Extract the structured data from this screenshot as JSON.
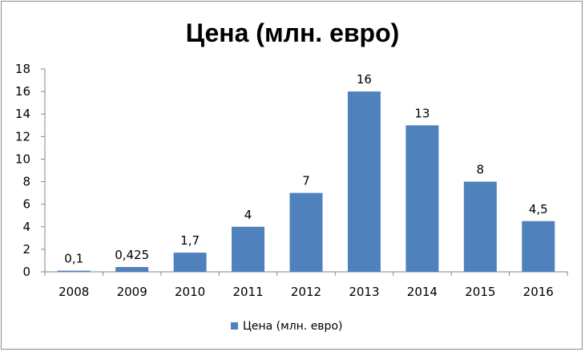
{
  "chart_data": {
    "type": "bar",
    "title": "Цена (млн. евро)",
    "xlabel": "",
    "ylabel": "",
    "categories": [
      "2008",
      "2009",
      "2010",
      "2011",
      "2012",
      "2013",
      "2014",
      "2015",
      "2016"
    ],
    "series": [
      {
        "name": "Цена (млн. евро)",
        "values": [
          0.1,
          0.425,
          1.7,
          4,
          7,
          16,
          13,
          8,
          4.5
        ],
        "labels": [
          "0,1",
          "0,425",
          "1,7",
          "4",
          "7",
          "16",
          "13",
          "8",
          "4,5"
        ],
        "color": "#4f81bd"
      }
    ],
    "ylim": [
      0,
      18
    ],
    "yticks": [
      0,
      2,
      4,
      6,
      8,
      10,
      12,
      14,
      16,
      18
    ],
    "grid": false,
    "legend_position": "bottom"
  }
}
